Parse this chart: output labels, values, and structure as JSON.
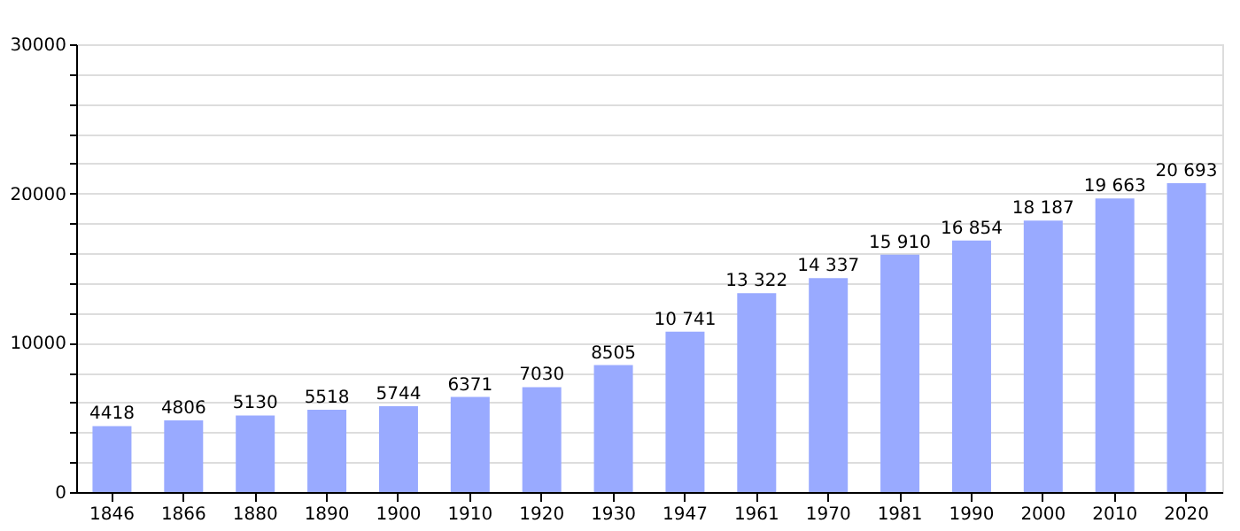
{
  "chart_data": {
    "type": "bar",
    "categories": [
      "1846",
      "1866",
      "1880",
      "1890",
      "1900",
      "1910",
      "1920",
      "1930",
      "1947",
      "1961",
      "1970",
      "1981",
      "1990",
      "2000",
      "2010",
      "2020"
    ],
    "values": [
      4418,
      4806,
      5130,
      5518,
      5744,
      6371,
      7030,
      8505,
      10741,
      13322,
      14337,
      15910,
      16854,
      18187,
      19663,
      20693
    ],
    "value_labels": [
      "4418",
      "4806",
      "5130",
      "5518",
      "5744",
      "6371",
      "7030",
      "8505",
      "10 741",
      "13 322",
      "14 337",
      "15 910",
      "16 854",
      "18 187",
      "19 663",
      "20 693"
    ],
    "color": "#99aaff",
    "ylim": [
      0,
      30000
    ],
    "yticks": [
      0,
      {
        "value": 2000,
        "label": null
      },
      {
        "value": 4000,
        "label": null
      },
      {
        "value": 6000,
        "label": null
      },
      {
        "value": 8000,
        "label": null
      },
      10000,
      {
        "value": 12000,
        "label": null
      },
      {
        "value": 14000,
        "label": null
      },
      {
        "value": 16000,
        "label": null
      },
      {
        "value": 18000,
        "label": null
      },
      20000,
      {
        "value": 22000,
        "label": null
      },
      {
        "value": 24000,
        "label": null
      },
      {
        "value": 26000,
        "label": null
      },
      {
        "value": 28000,
        "label": null
      },
      30000
    ],
    "grid": "y"
  }
}
